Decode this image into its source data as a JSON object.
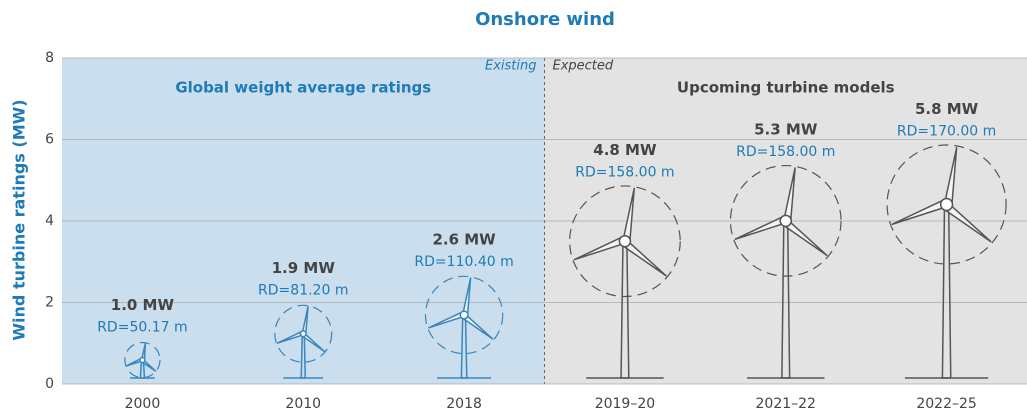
{
  "chart_data": {
    "type": "turbine",
    "title": "Onshore wind",
    "y_label": "Wind turbine ratings (MW)",
    "categories": [
      "2000",
      "2010",
      "2018",
      "2019–20",
      "2021–22",
      "2022–25"
    ],
    "values": [
      1.0,
      1.9,
      2.6,
      4.8,
      5.3,
      5.8
    ],
    "value_labels": [
      "1.0 MW",
      "1.9 MW",
      "2.6 MW",
      "4.8 MW",
      "5.3 MW",
      "5.8 MW"
    ],
    "rotor_diameters": {
      "values": [
        50.17,
        81.2,
        110.4,
        158.0,
        158.0,
        170.0
      ],
      "value_labels": [
        "RD=50.17 m",
        "RD=81.20 m",
        "RD=110.40 m",
        "RD=158.00 m",
        "RD=158.00 m",
        "RD=170.00 m"
      ]
    },
    "regions": [
      {
        "label": "Existing",
        "title": "Global weight average ratings",
        "span": 3,
        "color": "#cbdeee",
        "mark_color": "#3a86bd",
        "text_color": "#1f7ab8"
      },
      {
        "label": "Expected",
        "title": "Upcoming turbine models",
        "span": 3,
        "color": "#e3e3e3",
        "mark_color": "#555555",
        "text_color": "#444444"
      }
    ],
    "ylim": [
      0,
      8
    ],
    "yticks": [
      0,
      2,
      4,
      6,
      8
    ],
    "grid": true
  }
}
